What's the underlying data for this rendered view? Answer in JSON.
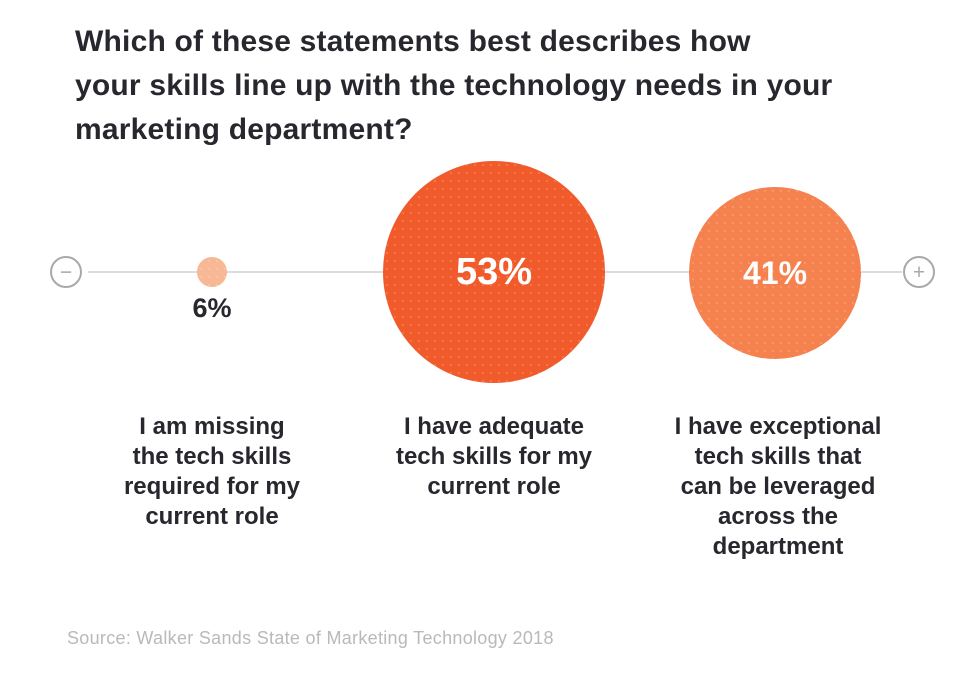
{
  "header": {
    "title_lines": [
      "Which of these statements best describes how",
      "your skills line up with the technology needs in your",
      "marketing department?"
    ]
  },
  "chart_data": {
    "type": "bubble",
    "title": "Which of these statements best describes how your skills line up with the technology needs in your marketing department?",
    "orientation": "horizontal-axis with minus/plus endpoints, bubble area encodes percentage",
    "points": [
      {
        "label": "I am missing the tech skills required for my current role",
        "label_lines": [
          "I am missing",
          "the tech skills",
          "required for my",
          "current role"
        ],
        "value": 6,
        "value_label": "6%",
        "color": "#f8b795"
      },
      {
        "label": "I have adequate tech skills for my current role",
        "label_lines": [
          "I have adequate",
          "tech skills for my",
          "current role"
        ],
        "value": 53,
        "value_label": "53%",
        "color": "#f15b2c"
      },
      {
        "label": "I have exceptional tech skills that can be leveraged across the department",
        "label_lines": [
          "I have exceptional",
          "tech skills that",
          "can be leveraged",
          "across the",
          "department"
        ],
        "value": 41,
        "value_label": "41%",
        "color": "#f5814e"
      }
    ],
    "axis": {
      "minus_symbol": "−",
      "plus_symbol": "+",
      "line_color": "#dcdcde",
      "endpoint_color": "#a9a9ad"
    }
  },
  "footer": {
    "source": "Source: Walker Sands State of Marketing Technology 2018"
  },
  "colors": {
    "background": "#ffffff",
    "text_dark": "#27272e",
    "bubble_small": "#f8b795",
    "bubble_big": "#f15b2c",
    "bubble_mid": "#f5814e",
    "value_text_on_bubble": "#ffffff",
    "source_text": "#b9b9bd"
  }
}
